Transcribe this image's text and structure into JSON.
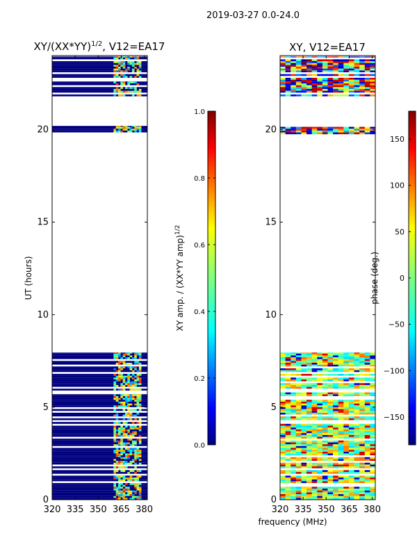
{
  "suptitle": "2019-03-27 0.0-24.0",
  "shared_xlabel": "frequency (MHz)",
  "chart_data": [
    {
      "type": "heatmap",
      "title_main": "XY/(XX*YY)",
      "title_sup": "1/2",
      "title_tail": ", V12=EA17",
      "xlabel": "",
      "ylabel": "UT (hours)",
      "xlim": [
        320,
        382
      ],
      "ylim": [
        0,
        24
      ],
      "xticks": [
        320,
        335,
        350,
        365,
        380
      ],
      "yticks": [
        0,
        5,
        10,
        15,
        20
      ],
      "data_blocks_ut": [
        [
          0,
          7.95
        ],
        [
          19.75,
          20.2
        ],
        [
          21.8,
          23.95
        ]
      ],
      "active_freq_range": [
        360,
        378
      ],
      "colorbar": {
        "label_main": "XY amp. / (XX*YY amp)",
        "label_sup": "1/2",
        "range": [
          0.0,
          1.0
        ],
        "ticks": [
          "0.0",
          "0.2",
          "0.4",
          "0.6",
          "0.8",
          "1.0"
        ]
      }
    },
    {
      "type": "heatmap",
      "title": "XY, V12=EA17",
      "xlabel": "frequency (MHz)",
      "ylabel": "",
      "xlim": [
        320,
        382
      ],
      "ylim": [
        0,
        24
      ],
      "xticks": [
        320,
        335,
        350,
        365,
        380
      ],
      "yticks": [
        0,
        5,
        10,
        15,
        20
      ],
      "data_blocks_ut": [
        [
          0,
          7.95
        ],
        [
          19.75,
          20.2
        ],
        [
          21.8,
          23.95
        ]
      ],
      "colorbar": {
        "label": "phase (deg.)",
        "range": [
          -180,
          180
        ],
        "ticks": [
          "−150",
          "−100",
          "−50",
          "0",
          "50",
          "100",
          "150"
        ],
        "tick_values": [
          -150,
          -100,
          -50,
          0,
          50,
          100,
          150
        ]
      }
    }
  ],
  "colors": {
    "jet_stops": [
      "#00007f",
      "#0000ff",
      "#007fff",
      "#00ffff",
      "#7fff7f",
      "#ffff00",
      "#ff7f00",
      "#ff0000",
      "#7f0000"
    ]
  }
}
